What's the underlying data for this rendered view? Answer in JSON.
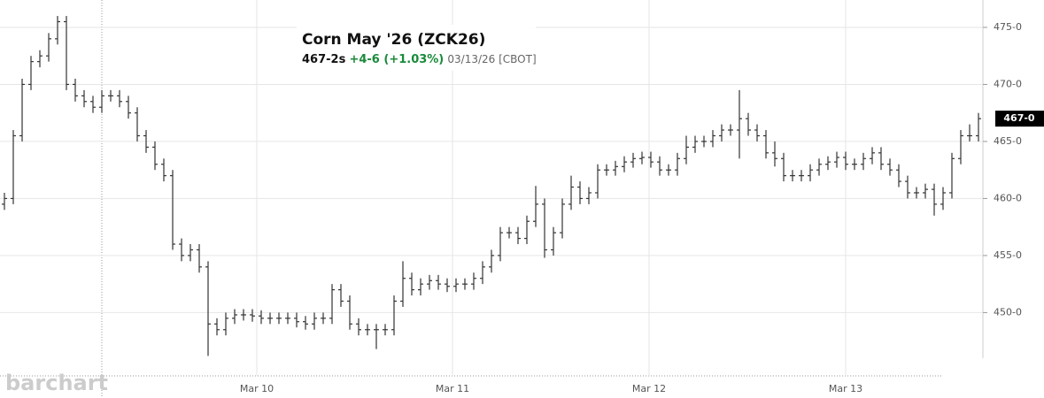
{
  "chart_data": {
    "type": "ohlc",
    "title": "Corn May '26 (ZCK26)",
    "quote": {
      "price": "467-2s",
      "change": "+4-6 (+1.03%)",
      "date": "03/13/26 [CBOT]"
    },
    "watermark": "barchart",
    "color": "#333333",
    "last_price": {
      "value": 467,
      "label": "467-0"
    },
    "xlim": [
      -0.5,
      110.5
    ],
    "xticks": [
      {
        "value": 28.5,
        "label": "Mar 10"
      },
      {
        "value": 50.6,
        "label": "Mar 11"
      },
      {
        "value": 72.8,
        "label": "Mar 12"
      },
      {
        "value": 95,
        "label": "Mar 13"
      }
    ],
    "ylim": [
      446,
      477.4
    ],
    "yticks": [
      {
        "value": 450,
        "label": "450-0"
      },
      {
        "value": 455,
        "label": "455-0"
      },
      {
        "value": 460,
        "label": "460-0"
      },
      {
        "value": 465,
        "label": "465-0"
      },
      {
        "value": 470,
        "label": "470-0"
      },
      {
        "value": 475,
        "label": "475-0"
      }
    ],
    "grid": true,
    "open": [
      459.5,
      460,
      465.5,
      470,
      472,
      472.5,
      474,
      475.5,
      470,
      469,
      468.5,
      468,
      469,
      469,
      468.5,
      467.5,
      465.5,
      464.5,
      463,
      462,
      456,
      455,
      455.5,
      454,
      449,
      448.5,
      449.5,
      449.8,
      449.8,
      449.7,
      449.5,
      449.5,
      449.5,
      449.5,
      449.2,
      449,
      449.5,
      449.5,
      452,
      451,
      449,
      448.5,
      448.5,
      448.5,
      448.5,
      451,
      453,
      452,
      452.5,
      452.8,
      452.5,
      452.3,
      452.5,
      452.5,
      453,
      454,
      455,
      457,
      457,
      456.5,
      458,
      459.5,
      455.5,
      457,
      459.5,
      461,
      460,
      460.5,
      462.5,
      462.5,
      462.8,
      463.2,
      463.5,
      463.6,
      463.2,
      462.5,
      462.5,
      463.5,
      464.5,
      465,
      465,
      465.5,
      466,
      466,
      467,
      466,
      465.5,
      464,
      463.5,
      462,
      462,
      462,
      462.5,
      463,
      463.2,
      463.6,
      463,
      463,
      463.5,
      464,
      463,
      462.5,
      461.5,
      460.5,
      460.5,
      460.8,
      459.5,
      460.5,
      463.5,
      465.5,
      465.5
    ],
    "high": [
      460.5,
      466,
      470.5,
      472.5,
      473,
      474.5,
      476,
      476,
      470.5,
      469.5,
      469,
      469.5,
      469.5,
      469.5,
      469,
      468,
      466,
      465,
      463.5,
      462.5,
      456.5,
      456,
      456,
      454.5,
      449.5,
      450,
      450.3,
      450.3,
      450.3,
      450.2,
      450,
      450,
      450,
      450,
      449.7,
      450,
      450,
      452.5,
      452.5,
      451.5,
      449.5,
      449,
      449,
      449,
      451.5,
      454.5,
      453.5,
      453,
      453.3,
      453.3,
      453,
      453,
      453,
      453.5,
      454.5,
      455.5,
      457.5,
      457.5,
      457.5,
      458.5,
      461.1,
      460,
      457.5,
      460,
      462,
      461.5,
      461,
      463,
      463,
      463.3,
      463.7,
      464,
      464.1,
      464.1,
      463.7,
      463,
      464,
      465.5,
      465.5,
      465.5,
      466,
      466.5,
      466.5,
      469.5,
      467.5,
      466.5,
      466,
      465,
      464,
      462.5,
      462.5,
      463,
      463.5,
      463.7,
      464.1,
      464.1,
      463.5,
      464,
      464.5,
      464.5,
      463.5,
      463,
      462,
      461,
      461.3,
      461.3,
      461,
      464,
      466,
      466.5,
      467.5
    ],
    "low": [
      459,
      459.5,
      465,
      469.5,
      471.5,
      472,
      473.5,
      469.5,
      468.5,
      468,
      467.5,
      467.5,
      468.5,
      468,
      467,
      465,
      464,
      462.5,
      461.5,
      455.5,
      454.5,
      454.5,
      453.5,
      446.2,
      448,
      448,
      449,
      449.3,
      449.2,
      449,
      449,
      449,
      449,
      448.7,
      448.5,
      448.5,
      449,
      449,
      450.5,
      448.5,
      448,
      448,
      446.8,
      448,
      448,
      450.5,
      451.5,
      451.5,
      452,
      452,
      451.8,
      451.8,
      452,
      452,
      452.5,
      453.5,
      454.5,
      456.5,
      456,
      456,
      457.5,
      454.8,
      455,
      456.5,
      459,
      459.5,
      459.5,
      460,
      462,
      462,
      462.3,
      462.7,
      463,
      462.7,
      462,
      462,
      462,
      463,
      464,
      464.5,
      464.5,
      465,
      465.5,
      463.5,
      465.5,
      465,
      463.5,
      462.8,
      461.5,
      461.5,
      461.5,
      461.5,
      462,
      462.5,
      462.7,
      462.5,
      462.5,
      462.5,
      463,
      462.5,
      462,
      461,
      460,
      460,
      460,
      458.5,
      459,
      460,
      463,
      465,
      465
    ],
    "close": [
      460,
      465.5,
      470,
      472,
      472.5,
      474,
      475.5,
      470,
      469,
      468.5,
      468,
      469,
      469,
      468.5,
      467.5,
      465.5,
      464.5,
      463,
      462,
      456,
      455,
      455.5,
      454,
      449,
      448.5,
      449.5,
      449.8,
      449.8,
      449.7,
      449.5,
      449.5,
      449.5,
      449.5,
      449.2,
      449,
      449.5,
      449.5,
      452,
      451,
      449,
      448.5,
      448.5,
      448.5,
      448.5,
      451,
      453,
      452,
      452.5,
      452.8,
      452.5,
      452.3,
      452.5,
      452.5,
      453,
      454,
      455,
      457,
      457,
      456.5,
      458,
      459.5,
      455.5,
      457,
      459.5,
      461,
      460,
      460.5,
      462.5,
      462.5,
      462.8,
      463.2,
      463.5,
      463.6,
      463.2,
      462.5,
      462.5,
      463.5,
      464.5,
      465,
      465,
      465.5,
      466,
      466,
      467,
      466,
      465.5,
      464,
      463.5,
      462,
      462,
      462,
      462.5,
      463,
      463.2,
      463.6,
      463,
      463,
      463.5,
      464,
      463,
      462.5,
      461.5,
      460.5,
      460.5,
      460.8,
      459.5,
      460.5,
      463.5,
      465.5,
      465.5,
      467
    ]
  }
}
